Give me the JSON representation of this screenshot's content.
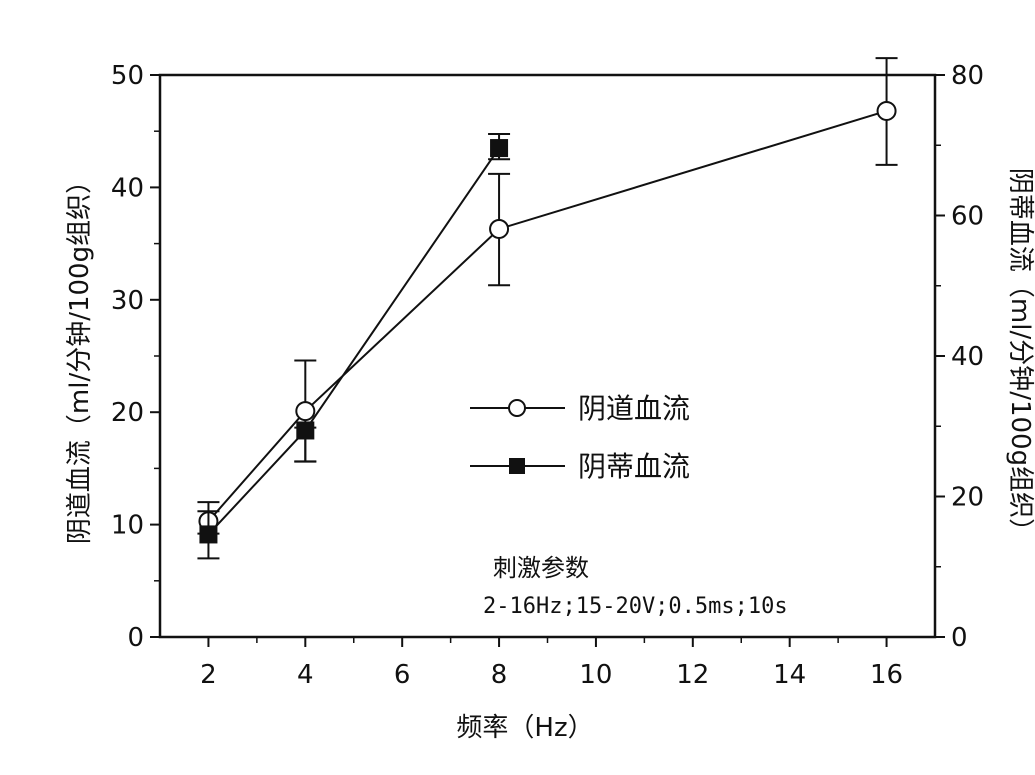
{
  "chart_data": {
    "type": "line",
    "x_ticks": [
      "2",
      "4",
      "6",
      "8",
      "10",
      "12",
      "14",
      "16"
    ],
    "xlim": [
      1,
      17
    ],
    "xlabel": "频率（Hz）",
    "y_left": {
      "label": "阴道血流（ml/分钟/100g组织）",
      "ylim": [
        0,
        50
      ],
      "ticks": [
        "0",
        "10",
        "20",
        "30",
        "40",
        "50"
      ]
    },
    "y_right": {
      "label": "阴蒂血流（ml/分钟/100g组织）",
      "ylim": [
        0,
        80
      ],
      "ticks": [
        "0",
        "20",
        "40",
        "60",
        "80"
      ]
    },
    "series": [
      {
        "name": "阴道血流",
        "marker": "open-circle",
        "axis": "left",
        "x": [
          2,
          4,
          8,
          16
        ],
        "y": [
          10.3,
          20.1,
          36.3,
          46.8
        ],
        "err_low": [
          9.2,
          15.6,
          31.3,
          42.0
        ],
        "err_high": [
          12.0,
          24.6,
          41.2,
          51.5
        ]
      },
      {
        "name": "阴蒂血流",
        "marker": "filled-square",
        "axis": "right",
        "x": [
          2,
          4,
          8
        ],
        "y": [
          14.6,
          29.4,
          69.6
        ],
        "err_low": [
          11.2,
          25.0,
          68.0
        ],
        "err_high": [
          17.9,
          29.8,
          71.6
        ]
      }
    ],
    "legend_position": "center",
    "annotation": {
      "title": "刺激参数",
      "text": "2-16Hz;15-20V;0.5ms;10s"
    },
    "grid": false,
    "colors": {
      "line": "#111111",
      "background": "#ffffff"
    }
  }
}
